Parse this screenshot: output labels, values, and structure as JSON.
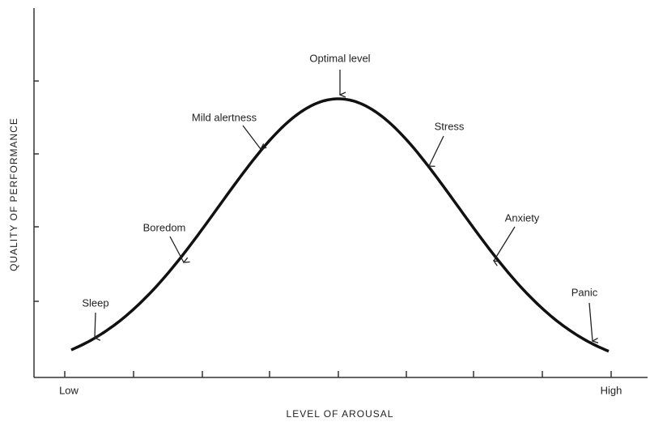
{
  "y_axis_label": "QUALITY OF PERFORMANCE",
  "x_axis_label": "LEVEL OF AROUSAL",
  "x_axis_ends": [
    "Low",
    "High"
  ],
  "annotations": [
    "Optimal level",
    "Mild alertness",
    "Stress",
    "Boredom",
    "Anxiety",
    "Sleep",
    "Panic"
  ]
}
